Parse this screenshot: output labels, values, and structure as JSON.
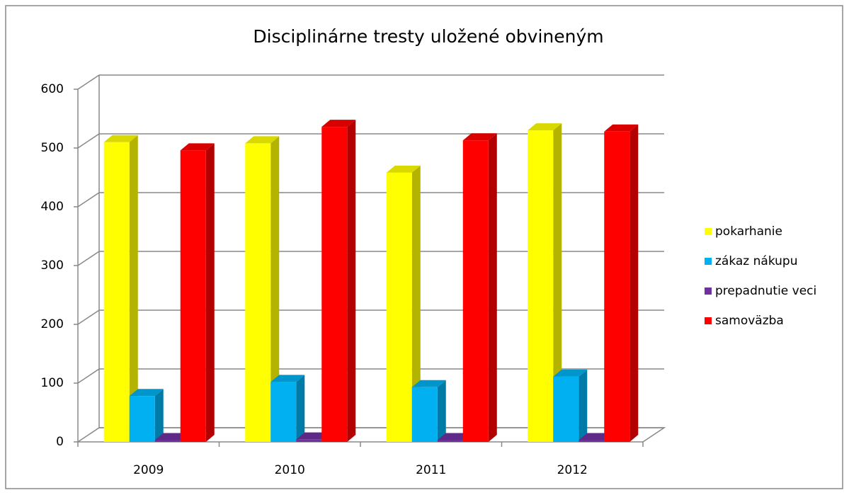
{
  "chart_data": {
    "type": "bar3d",
    "title": "Disciplinárne tresty uložené obvineným",
    "categories": [
      "2009",
      "2010",
      "2011",
      "2012"
    ],
    "series": [
      {
        "name": "pokarhanie",
        "color": "#ffff00",
        "values": [
          510,
          508,
          458,
          530
        ]
      },
      {
        "name": "zákaz nákupu",
        "color": "#00b0f0",
        "values": [
          78,
          102,
          93,
          111
        ]
      },
      {
        "name": "prepadnutie veci",
        "color": "#7030a0",
        "values": [
          3,
          4,
          3,
          3
        ]
      },
      {
        "name": "samoväzba",
        "color": "#ff0000",
        "values": [
          496,
          536,
          513,
          528
        ]
      }
    ],
    "ylim": [
      0,
      600
    ],
    "yticks": [
      0,
      100,
      200,
      300,
      400,
      500,
      600
    ],
    "grid": true,
    "legend": "right"
  }
}
